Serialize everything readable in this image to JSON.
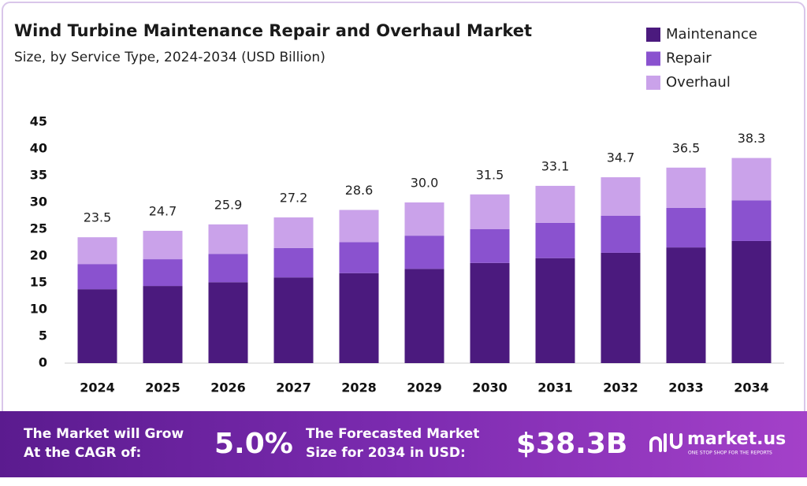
{
  "chart_data": {
    "type": "stacked_bar",
    "title": "Wind Turbine Maintenance Repair and Overhaul Market",
    "subtitle": "Size, by Service Type, 2024-2034 (USD Billion)",
    "categories": [
      "2024",
      "2025",
      "2026",
      "2027",
      "2028",
      "2029",
      "2030",
      "2031",
      "2032",
      "2033",
      "2034"
    ],
    "series": [
      {
        "name": "Maintenance",
        "color": "#4b1a7e",
        "values": [
          13.8,
          14.4,
          15.1,
          16.0,
          16.8,
          17.6,
          18.7,
          19.6,
          20.6,
          21.6,
          22.8
        ]
      },
      {
        "name": "Repair",
        "color": "#8a52cf",
        "values": [
          4.7,
          5.0,
          5.3,
          5.5,
          5.8,
          6.2,
          6.3,
          6.6,
          6.9,
          7.4,
          7.6
        ]
      },
      {
        "name": "Overhaul",
        "color": "#caa2ea",
        "values": [
          5.0,
          5.3,
          5.5,
          5.7,
          6.0,
          6.2,
          6.5,
          6.9,
          7.2,
          7.5,
          7.9
        ]
      }
    ],
    "totals": [
      "23.5",
      "24.7",
      "25.9",
      "27.2",
      "28.6",
      "30.0",
      "31.5",
      "33.1",
      "34.7",
      "36.5",
      "38.3"
    ],
    "ylim": [
      0,
      45
    ],
    "yticks": [
      0,
      5,
      10,
      15,
      20,
      25,
      30,
      35,
      40,
      45
    ],
    "grid": false,
    "legend": "top-right"
  },
  "footer": {
    "cagr_label": [
      "The Market will Grow",
      "At the CAGR of:"
    ],
    "cagr": "5.0%",
    "forecast_label": [
      "The Forecasted Market",
      "Size for 2034 in USD:"
    ],
    "forecast": "$38.3B",
    "brand": "market.us",
    "tagline": "ONE STOP SHOP FOR THE REPORTS"
  }
}
